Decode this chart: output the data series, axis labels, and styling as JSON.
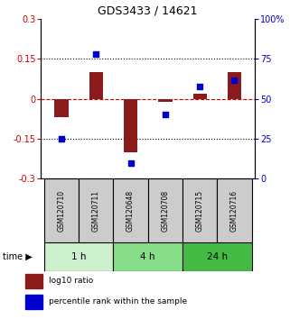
{
  "title": "GDS3433 / 14621",
  "samples": [
    "GSM120710",
    "GSM120711",
    "GSM120648",
    "GSM120708",
    "GSM120715",
    "GSM120716"
  ],
  "log10_ratio": [
    -0.07,
    0.1,
    -0.2,
    -0.01,
    0.02,
    0.1
  ],
  "percentile_rank": [
    25,
    78,
    10,
    40,
    58,
    62
  ],
  "ylim_left": [
    -0.3,
    0.3
  ],
  "ylim_right": [
    0,
    100
  ],
  "yticks_left": [
    -0.3,
    -0.15,
    0,
    0.15,
    0.3
  ],
  "ytick_labels_left": [
    "-0.3",
    "-0.15",
    "0",
    "0.15",
    "0.3"
  ],
  "yticks_right": [
    0,
    25,
    50,
    75,
    100
  ],
  "ytick_labels_right": [
    "0",
    "25",
    "50",
    "75",
    "100%"
  ],
  "hlines": [
    0.15,
    -0.15
  ],
  "bar_color": "#8B1A1A",
  "dot_color": "#0000CD",
  "zero_line_color": "#CC0000",
  "dotted_line_color": "#000000",
  "time_groups": [
    {
      "label": "1 h",
      "start": 0,
      "end": 1,
      "color": "#ccf0cc"
    },
    {
      "label": "4 h",
      "start": 2,
      "end": 3,
      "color": "#88dd88"
    },
    {
      "label": "24 h",
      "start": 4,
      "end": 5,
      "color": "#44bb44"
    }
  ],
  "sample_box_color": "#cccccc",
  "background_color": "#ffffff",
  "legend_red_label": "log10 ratio",
  "legend_blue_label": "percentile rank within the sample",
  "bar_width": 0.4,
  "dot_size": 25
}
